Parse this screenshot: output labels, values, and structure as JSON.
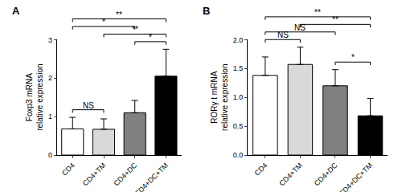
{
  "chart_data": [
    {
      "type": "bar",
      "title": "A",
      "y_label": [
        "Foxp3 mRNA",
        "relative expression"
      ],
      "categories": [
        "CD4",
        "CD4+TM",
        "CD4+DC",
        "CD4+DC+TM"
      ],
      "values": [
        0.68,
        0.67,
        1.1,
        2.05
      ],
      "errors": [
        0.3,
        0.27,
        0.32,
        0.7
      ],
      "colors": [
        "#ffffff",
        "#d9d9d9",
        "#808080",
        "#000000"
      ],
      "ylim": [
        0,
        3
      ],
      "yticks": [
        0,
        1,
        2,
        3
      ],
      "grid": false,
      "comparisons": [
        {
          "from": "CD4",
          "to": "CD4+DC+TM",
          "label": "**"
        },
        {
          "from": "CD4+TM",
          "to": "CD4+DC+TM",
          "label": "**"
        },
        {
          "from": "CD4+DC",
          "to": "CD4+DC+TM",
          "label": "*"
        },
        {
          "from": "CD4",
          "to": "CD4+DC",
          "label": "*"
        },
        {
          "from": "CD4",
          "to": "CD4+TM",
          "label": "NS"
        }
      ]
    },
    {
      "type": "bar",
      "title": "B",
      "y_label": [
        "RORγ t mRNA",
        "relative expression"
      ],
      "categories": [
        "CD4",
        "CD4+TM",
        "CD4+DC",
        "CD4+DC+TM"
      ],
      "values": [
        1.38,
        1.57,
        1.2,
        0.68
      ],
      "errors": [
        0.32,
        0.3,
        0.28,
        0.3
      ],
      "colors": [
        "#ffffff",
        "#d9d9d9",
        "#808080",
        "#000000"
      ],
      "ylim": [
        0,
        2
      ],
      "yticks": [
        {
          "value": 0,
          "label": "0.0"
        },
        0.5,
        {
          "value": 1,
          "label": "1.0"
        },
        1.5,
        {
          "value": 2,
          "label": "2.0"
        }
      ],
      "grid": false,
      "comparisons": [
        {
          "from": "CD4",
          "to": "CD4+DC+TM",
          "label": "**"
        },
        {
          "from": "CD4",
          "to": "CD4+DC",
          "label": "NS"
        },
        {
          "from": "CD4",
          "to": "CD4+TM",
          "label": "NS"
        },
        {
          "from": "CD4+TM",
          "to": "CD4+DC+TM",
          "label": "**"
        },
        {
          "from": "CD4+DC",
          "to": "CD4+DC+TM",
          "label": "*"
        }
      ]
    }
  ]
}
